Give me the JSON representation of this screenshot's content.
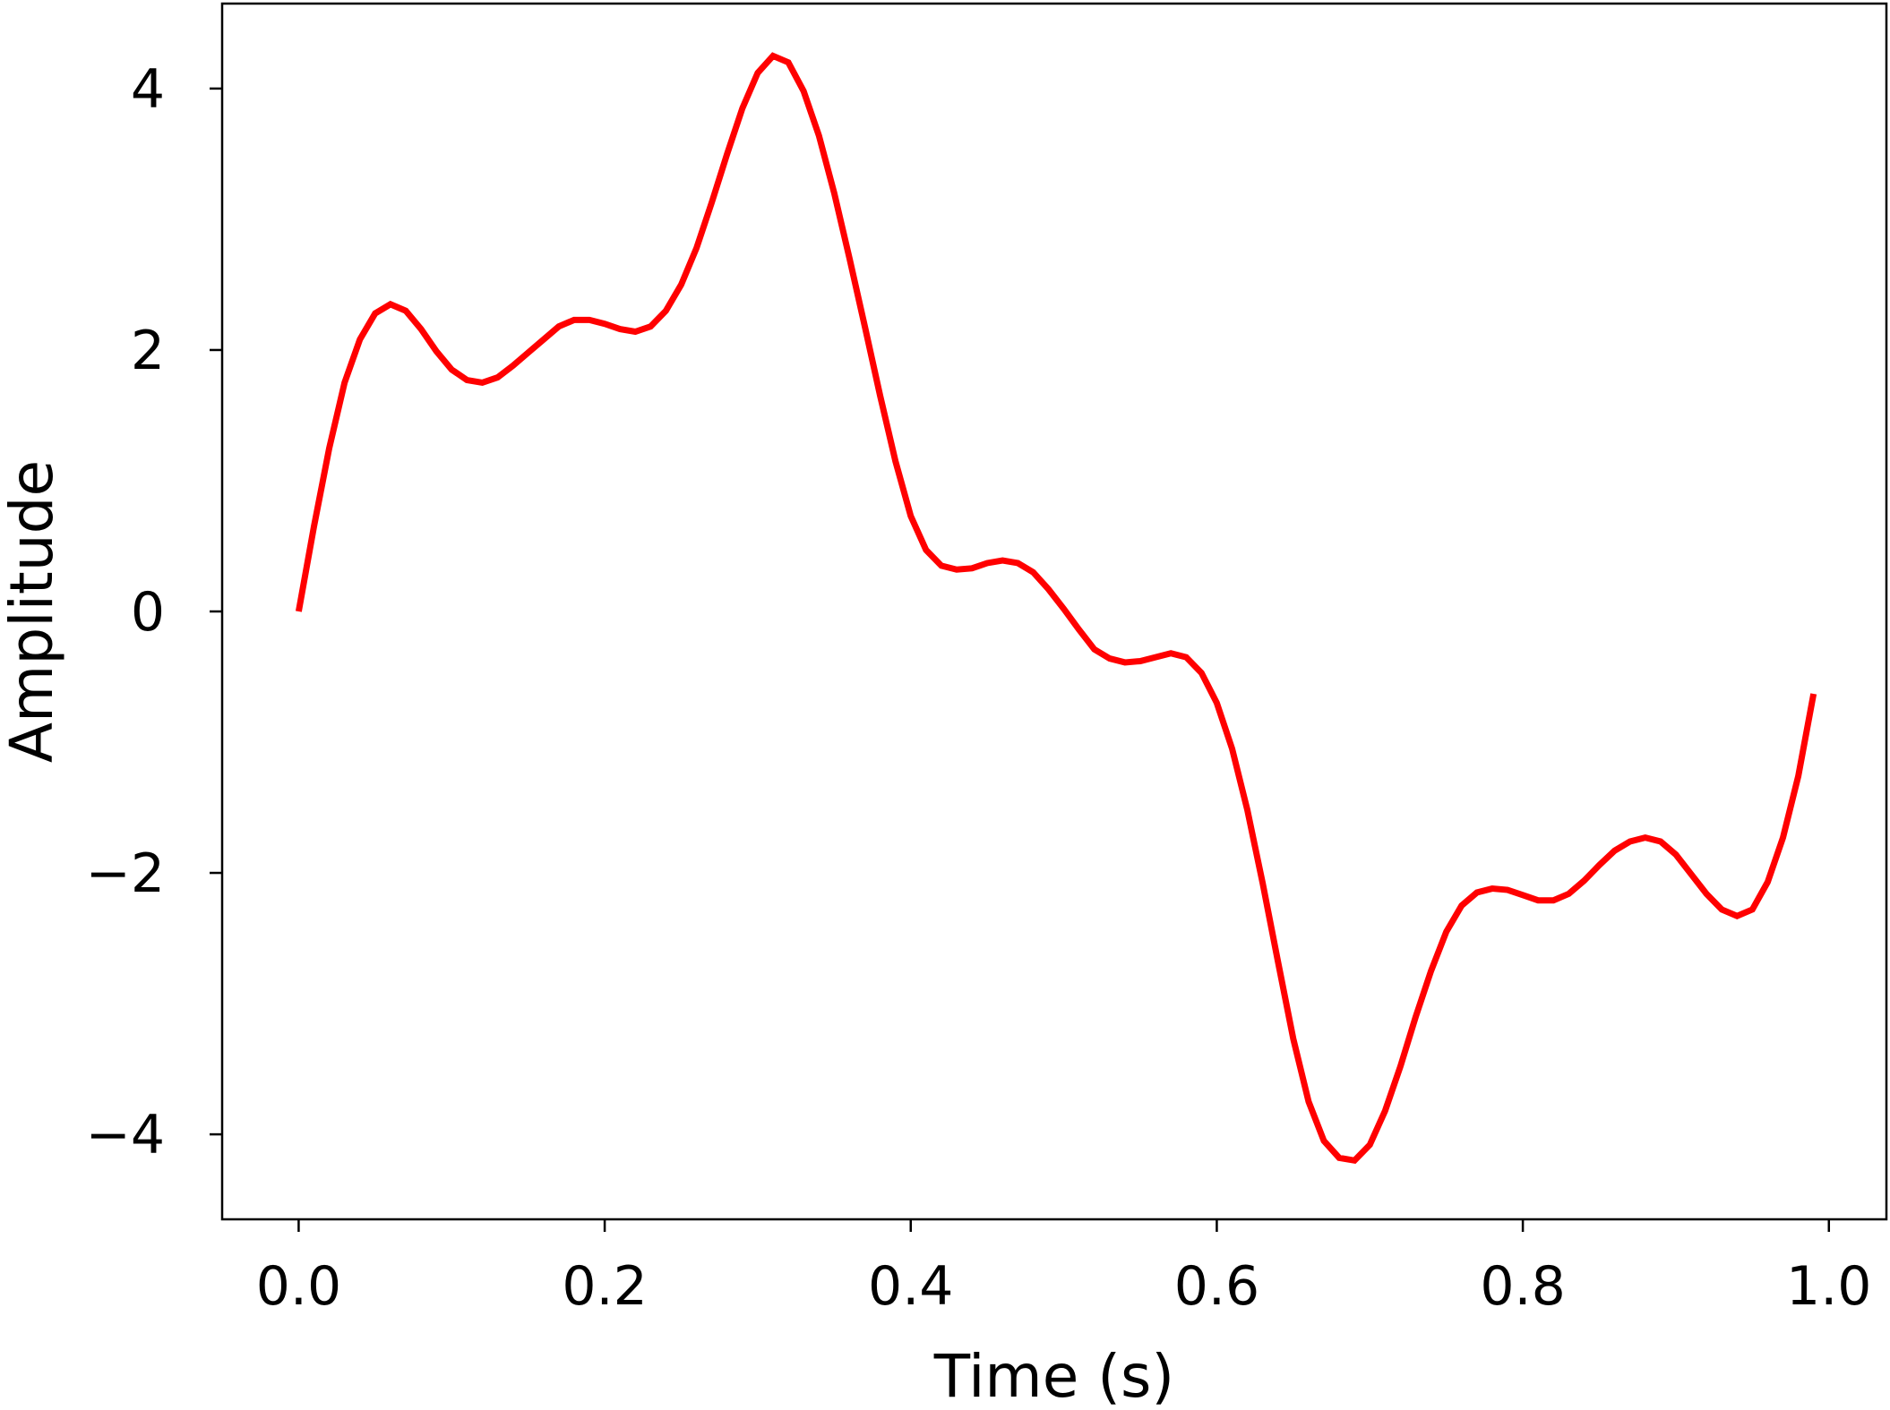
{
  "chart_data": {
    "type": "line",
    "title": "",
    "xlabel": "Time (s)",
    "ylabel": "Amplitude",
    "xlim": [
      -0.05,
      1.0376
    ],
    "ylim": [
      -4.65,
      4.65
    ],
    "x_ticks": [
      0.0,
      0.2,
      0.4,
      0.6,
      0.8,
      1.0
    ],
    "x_tick_labels": [
      "0.0",
      "0.2",
      "0.4",
      "0.6",
      "0.8",
      "1.0"
    ],
    "y_ticks": [
      4,
      2,
      0,
      -2,
      -4
    ],
    "y_tick_labels": [
      "4",
      "2",
      "0",
      "−2",
      "−4"
    ],
    "grid": false,
    "legend": false,
    "series": [
      {
        "color": "#ff0000",
        "x": [
          0.0,
          0.01,
          0.02,
          0.03,
          0.04,
          0.05,
          0.06,
          0.07,
          0.08,
          0.09,
          0.1,
          0.11,
          0.12,
          0.13,
          0.14,
          0.15,
          0.16,
          0.17,
          0.18,
          0.19,
          0.2,
          0.21,
          0.22,
          0.23,
          0.24,
          0.25,
          0.26,
          0.27,
          0.28,
          0.29,
          0.3,
          0.31,
          0.32,
          0.33,
          0.34,
          0.35,
          0.36,
          0.37,
          0.38,
          0.39,
          0.4,
          0.41,
          0.42,
          0.43,
          0.44,
          0.45,
          0.46,
          0.47,
          0.48,
          0.49,
          0.5,
          0.51,
          0.52,
          0.53,
          0.54,
          0.55,
          0.56,
          0.57,
          0.58,
          0.59,
          0.6,
          0.61,
          0.62,
          0.63,
          0.64,
          0.65,
          0.66,
          0.67,
          0.68,
          0.69,
          0.7,
          0.71,
          0.72,
          0.73,
          0.74,
          0.75,
          0.76,
          0.77,
          0.78,
          0.79,
          0.8,
          0.81,
          0.82,
          0.83,
          0.84,
          0.85,
          0.86,
          0.87,
          0.88,
          0.89,
          0.9,
          0.91,
          0.92,
          0.93,
          0.94,
          0.95,
          0.96,
          0.97,
          0.98,
          0.99
        ],
        "y": [
          0.0,
          0.65,
          1.25,
          1.75,
          2.08,
          2.28,
          2.35,
          2.3,
          2.16,
          1.99,
          1.85,
          1.77,
          1.75,
          1.79,
          1.88,
          1.98,
          2.08,
          2.18,
          2.23,
          2.23,
          2.2,
          2.16,
          2.14,
          2.18,
          2.3,
          2.5,
          2.78,
          3.13,
          3.5,
          3.85,
          4.12,
          4.25,
          4.2,
          3.98,
          3.64,
          3.2,
          2.7,
          2.18,
          1.65,
          1.15,
          0.73,
          0.47,
          0.35,
          0.32,
          0.33,
          0.37,
          0.39,
          0.37,
          0.3,
          0.17,
          0.02,
          -0.14,
          -0.29,
          -0.36,
          -0.39,
          -0.38,
          -0.35,
          -0.32,
          -0.35,
          -0.47,
          -0.7,
          -1.05,
          -1.52,
          -2.08,
          -2.68,
          -3.27,
          -3.75,
          -4.05,
          -4.18,
          -4.2,
          -4.08,
          -3.82,
          -3.48,
          -3.1,
          -2.75,
          -2.45,
          -2.25,
          -2.15,
          -2.12,
          -2.13,
          -2.17,
          -2.21,
          -2.21,
          -2.16,
          -2.06,
          -1.94,
          -1.83,
          -1.76,
          -1.73,
          -1.76,
          -1.86,
          -2.01,
          -2.16,
          -2.28,
          -2.33,
          -2.28,
          -2.07,
          -1.73,
          -1.26,
          -0.63
        ]
      }
    ]
  }
}
